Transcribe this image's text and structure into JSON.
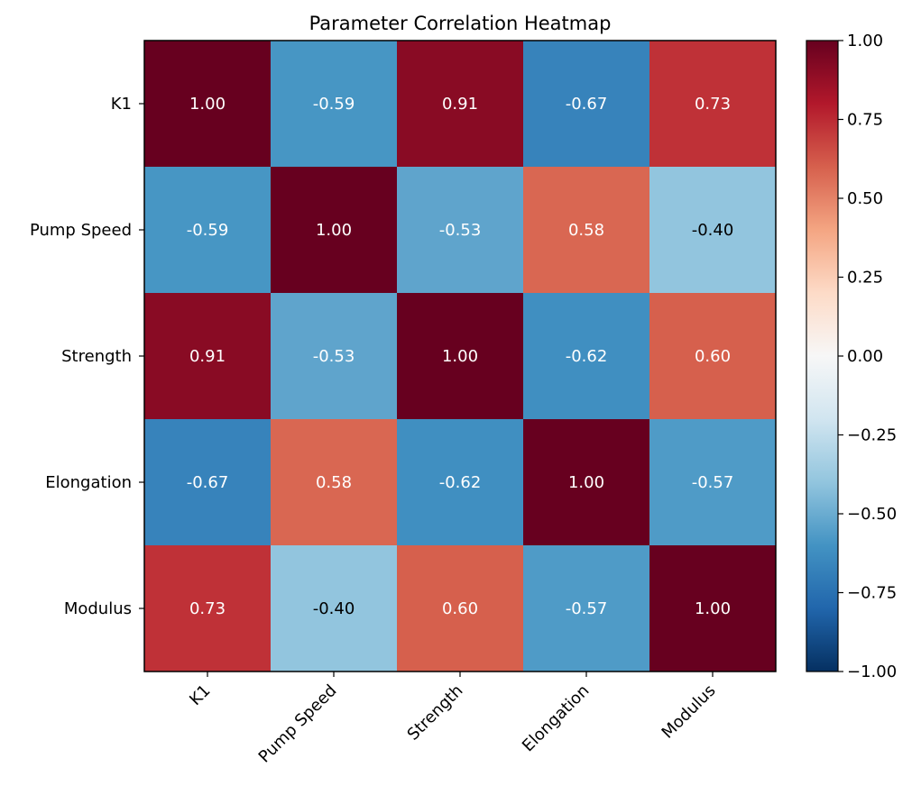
{
  "chart_data": {
    "type": "heatmap",
    "title": "Parameter Correlation Heatmap",
    "row_labels": [
      "K1",
      "Pump Speed",
      "Strength",
      "Elongation",
      "Modulus"
    ],
    "col_labels": [
      "K1",
      "Pump Speed",
      "Strength",
      "Elongation",
      "Modulus"
    ],
    "values": [
      [
        1.0,
        -0.59,
        0.91,
        -0.67,
        0.73
      ],
      [
        -0.59,
        1.0,
        -0.53,
        0.58,
        -0.4
      ],
      [
        0.91,
        -0.53,
        1.0,
        -0.62,
        0.6
      ],
      [
        -0.67,
        0.58,
        -0.62,
        1.0,
        -0.57
      ],
      [
        0.73,
        -0.4,
        0.6,
        -0.57,
        1.0
      ]
    ],
    "value_labels": [
      [
        "1.00",
        "-0.59",
        "0.91",
        "-0.67",
        "0.73"
      ],
      [
        "-0.59",
        "1.00",
        "-0.53",
        "0.58",
        "-0.40"
      ],
      [
        "0.91",
        "-0.53",
        "1.00",
        "-0.62",
        "0.60"
      ],
      [
        "-0.67",
        "0.58",
        "-0.62",
        "1.00",
        "-0.57"
      ],
      [
        "0.73",
        "-0.40",
        "0.60",
        "-0.57",
        "1.00"
      ]
    ],
    "colorbar": {
      "range": [
        -1.0,
        1.0
      ],
      "ticks": [
        1.0,
        0.75,
        0.5,
        0.25,
        0.0,
        -0.25,
        -0.5,
        -0.75,
        -1.0
      ],
      "tick_labels": [
        "1.00",
        "0.75",
        "0.50",
        "0.25",
        "0.00",
        "−0.25",
        "−0.50",
        "−0.75",
        "−1.00"
      ],
      "colormap": "RdBu_r",
      "colors": [
        "#053061",
        "#2166ac",
        "#4393c3",
        "#92c5de",
        "#d1e5f0",
        "#f7f7f7",
        "#fddbc7",
        "#f4a582",
        "#d6604d",
        "#b2182b",
        "#67001f"
      ]
    },
    "text_colors": {
      "light": "#ffffff",
      "dark": "#000000"
    }
  }
}
